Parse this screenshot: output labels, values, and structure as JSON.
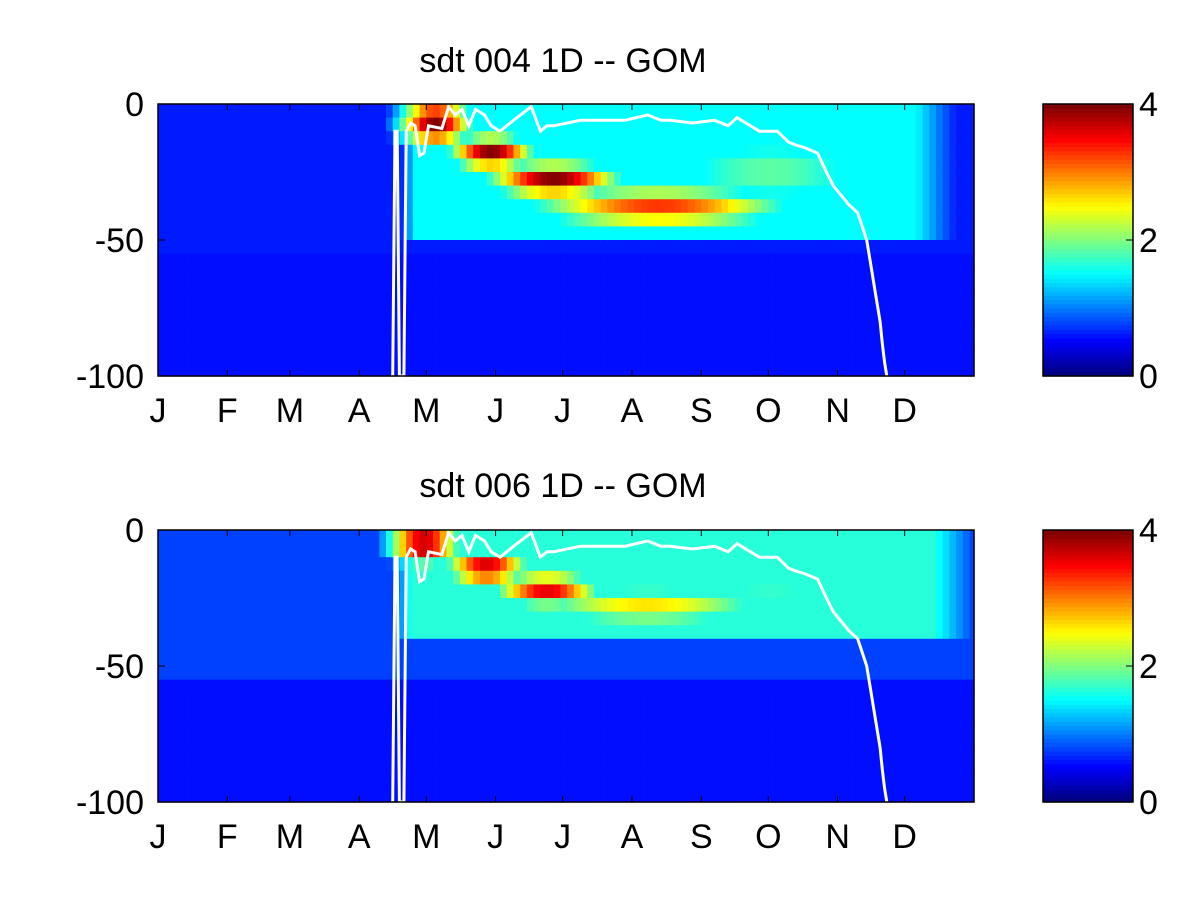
{
  "colors": {
    "background": "#ffffff",
    "mld_line": "#ffffff",
    "axis_box": "#000000",
    "colormap": "jet"
  },
  "chart_data": [
    {
      "type": "heatmap",
      "title": "sdt  004 1D   -- GOM",
      "xlabel": "",
      "ylabel": "",
      "x_tick_labels": [
        "J",
        "F",
        "M",
        "A",
        "M",
        "J",
        "J",
        "A",
        "S",
        "O",
        "N",
        "D"
      ],
      "x_ticks_day": [
        1,
        32,
        60,
        91,
        121,
        152,
        182,
        213,
        244,
        274,
        305,
        335
      ],
      "xlim": [
        1,
        366
      ],
      "y_ticks": [
        0,
        -50,
        -100
      ],
      "ylim": [
        -100,
        0
      ],
      "colorbar": {
        "min": 0,
        "max": 4,
        "ticks": [
          0,
          2,
          4
        ]
      },
      "band_depths": [
        -5,
        -10,
        -15,
        -20,
        -25,
        -30,
        -35,
        -40,
        -45,
        -50,
        -55,
        -60,
        -70,
        -80,
        -90,
        -100
      ],
      "peaks": [
        {
          "day": 125,
          "depth": -7,
          "value": 4.0,
          "day_spread": 12,
          "depth_spread": 7
        },
        {
          "day": 150,
          "depth": -18,
          "value": 4.0,
          "day_spread": 14,
          "depth_spread": 5
        },
        {
          "day": 178,
          "depth": -28,
          "value": 4.0,
          "day_spread": 22,
          "depth_spread": 5
        },
        {
          "day": 225,
          "depth": -38,
          "value": 3.3,
          "day_spread": 45,
          "depth_spread": 6
        },
        {
          "day": 275,
          "depth": -25,
          "value": 1.9,
          "day_spread": 45,
          "depth_spread": 12
        }
      ],
      "background_value": 0.6,
      "onset_day": 110,
      "end_day": 358,
      "max_depth_extent": -48,
      "mixed_layer_depth": {
        "days": [
          106,
          107,
          108,
          109,
          111,
          112,
          114,
          116,
          118,
          120,
          122,
          128,
          131,
          134,
          137,
          140,
          143,
          147,
          150,
          154,
          160,
          168,
          172,
          175,
          178,
          190,
          200,
          210,
          220,
          226,
          230,
          240,
          250,
          256,
          260,
          270,
          278,
          283,
          286,
          290,
          296,
          300,
          303,
          305,
          310,
          314,
          316,
          318,
          320,
          322,
          324,
          325,
          326,
          327
        ],
        "depths": [
          -100,
          -10,
          -10,
          -100,
          -100,
          -10,
          -7,
          -8,
          -19,
          -18,
          -8,
          -9,
          -1,
          -4,
          -2,
          -8,
          -2,
          -4,
          -8,
          -10,
          -6,
          -1,
          -10,
          -8,
          -8,
          -6,
          -6,
          -6,
          -4,
          -6,
          -6,
          -7,
          -6,
          -8,
          -5,
          -10,
          -10,
          -14,
          -15,
          -16,
          -18,
          -25,
          -30,
          -32,
          -37,
          -40,
          -45,
          -50,
          -60,
          -70,
          -80,
          -88,
          -95,
          -100
        ]
      }
    },
    {
      "type": "heatmap",
      "title": "sdt  006 1D   -- GOM",
      "xlabel": "",
      "ylabel": "",
      "x_tick_labels": [
        "J",
        "F",
        "M",
        "A",
        "M",
        "J",
        "J",
        "A",
        "S",
        "O",
        "N",
        "D"
      ],
      "x_ticks_day": [
        1,
        32,
        60,
        91,
        121,
        152,
        182,
        213,
        244,
        274,
        305,
        335
      ],
      "xlim": [
        1,
        366
      ],
      "y_ticks": [
        0,
        -50,
        -100
      ],
      "ylim": [
        -100,
        0
      ],
      "colorbar": {
        "min": 0,
        "max": 4,
        "ticks": [
          0,
          2,
          4
        ]
      },
      "band_depths": [
        -5,
        -10,
        -15,
        -20,
        -25,
        -30,
        -35,
        -40,
        -45,
        -50,
        -55,
        -60,
        -70,
        -80,
        -90,
        -100
      ],
      "peaks": [
        {
          "day": 120,
          "depth": -5,
          "value": 4.0,
          "day_spread": 12,
          "depth_spread": 6
        },
        {
          "day": 148,
          "depth": -14,
          "value": 3.8,
          "day_spread": 14,
          "depth_spread": 5
        },
        {
          "day": 175,
          "depth": -22,
          "value": 3.6,
          "day_spread": 18,
          "depth_spread": 5
        },
        {
          "day": 220,
          "depth": -28,
          "value": 2.6,
          "day_spread": 45,
          "depth_spread": 6
        },
        {
          "day": 275,
          "depth": -22,
          "value": 1.7,
          "day_spread": 45,
          "depth_spread": 10
        }
      ],
      "background_value": 0.75,
      "onset_day": 108,
      "end_day": 366,
      "max_depth_extent": -40,
      "mixed_layer_depth": {
        "days": [
          106,
          107,
          108,
          109,
          111,
          112,
          114,
          116,
          118,
          120,
          122,
          128,
          131,
          134,
          137,
          140,
          143,
          147,
          150,
          154,
          160,
          168,
          172,
          175,
          178,
          190,
          200,
          210,
          220,
          226,
          230,
          240,
          250,
          256,
          260,
          270,
          278,
          283,
          286,
          290,
          296,
          300,
          303,
          305,
          310,
          314,
          316,
          318,
          320,
          322,
          324,
          325,
          326,
          327
        ],
        "depths": [
          -100,
          -10,
          -10,
          -100,
          -100,
          -10,
          -7,
          -8,
          -19,
          -18,
          -8,
          -9,
          -1,
          -4,
          -2,
          -8,
          -2,
          -4,
          -8,
          -10,
          -6,
          -1,
          -10,
          -8,
          -8,
          -6,
          -6,
          -6,
          -4,
          -6,
          -6,
          -7,
          -6,
          -8,
          -5,
          -10,
          -10,
          -14,
          -15,
          -16,
          -18,
          -25,
          -30,
          -32,
          -37,
          -40,
          -45,
          -50,
          -60,
          -70,
          -80,
          -88,
          -95,
          -100
        ]
      }
    }
  ]
}
